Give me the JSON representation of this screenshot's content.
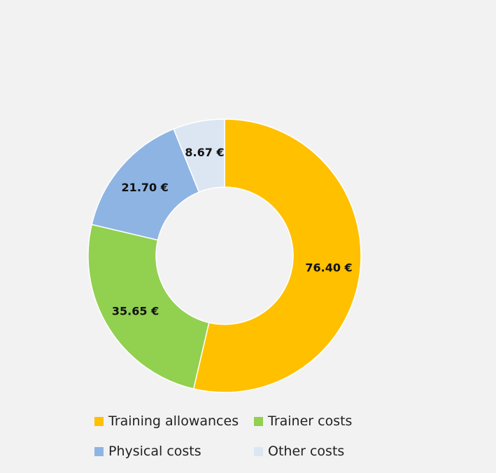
{
  "chart_data": {
    "type": "pie",
    "variant": "donut",
    "categories": [
      "Training allowances",
      "Trainer costs",
      "Physical costs",
      "Other costs"
    ],
    "values": [
      76.4,
      35.65,
      21.7,
      8.67
    ],
    "value_labels": [
      "76.40 €",
      "35.65 €",
      "21.70 €",
      "8.67 €"
    ],
    "colors": [
      "#ffc000",
      "#92d050",
      "#8eb4e3",
      "#dce6f2"
    ],
    "slice_border_color": "#ffffff",
    "legend_position": "bottom",
    "start_angle_deg": 0,
    "direction": "clockwise"
  },
  "background_color": "#f2f2f2"
}
